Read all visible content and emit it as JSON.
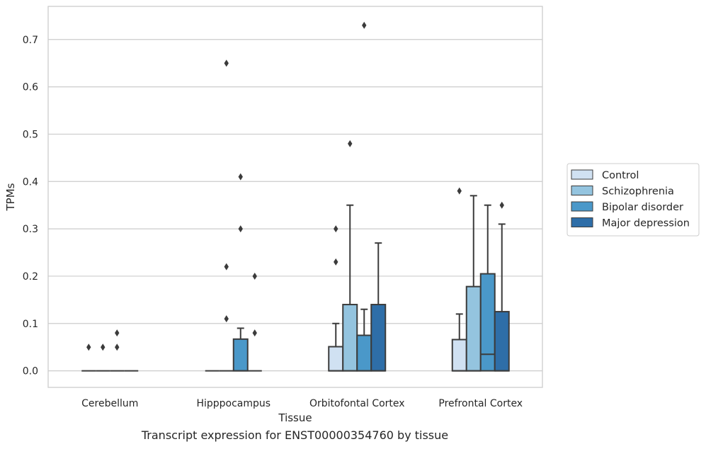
{
  "caption": "Transcript expression for ENST00000354760 by tissue",
  "chart_data": {
    "type": "box",
    "xlabel": "Tissue",
    "ylabel": "TPMs",
    "ylim": [
      -0.035,
      0.77
    ],
    "yticks": [
      0.0,
      0.1,
      0.2,
      0.3,
      0.4,
      0.5,
      0.6,
      0.7
    ],
    "ytick_labels": [
      "0.0",
      "0.1",
      "0.2",
      "0.3",
      "0.4",
      "0.5",
      "0.6",
      "0.7"
    ],
    "grid": "horizontal",
    "legend_position": "right",
    "categories": [
      "Cerebellum",
      "Hipppocampus",
      "Orbitofontal Cortex",
      "Prefrontal Cortex"
    ],
    "series": [
      {
        "name": "Control",
        "color": "#d0e1f2",
        "boxes": [
          {
            "q1": 0.0,
            "median": 0.0,
            "q3": 0.0,
            "whisker_low": 0.0,
            "whisker_high": 0.0,
            "outliers": [
              0.05
            ]
          },
          {
            "q1": 0.0,
            "median": 0.0,
            "q3": 0.0,
            "whisker_low": 0.0,
            "whisker_high": 0.0,
            "outliers": []
          },
          {
            "q1": 0.0,
            "median": 0.0,
            "q3": 0.051,
            "whisker_low": 0.0,
            "whisker_high": 0.1,
            "outliers": [
              0.23,
              0.3
            ]
          },
          {
            "q1": 0.0,
            "median": 0.0,
            "q3": 0.066,
            "whisker_low": 0.0,
            "whisker_high": 0.12,
            "outliers": [
              0.38
            ]
          }
        ]
      },
      {
        "name": "Schizophrenia",
        "color": "#94c4df",
        "boxes": [
          {
            "q1": 0.0,
            "median": 0.0,
            "q3": 0.0,
            "whisker_low": 0.0,
            "whisker_high": 0.0,
            "outliers": [
              0.05
            ]
          },
          {
            "q1": 0.0,
            "median": 0.0,
            "q3": 0.0,
            "whisker_low": 0.0,
            "whisker_high": 0.0,
            "outliers": [
              0.11,
              0.22,
              0.65
            ]
          },
          {
            "q1": 0.0,
            "median": 0.0,
            "q3": 0.14,
            "whisker_low": 0.0,
            "whisker_high": 0.35,
            "outliers": [
              0.48
            ]
          },
          {
            "q1": 0.0,
            "median": 0.0,
            "q3": 0.178,
            "whisker_low": 0.0,
            "whisker_high": 0.37,
            "outliers": []
          }
        ]
      },
      {
        "name": "Bipolar disorder",
        "color": "#4a98c9",
        "boxes": [
          {
            "q1": 0.0,
            "median": 0.0,
            "q3": 0.0,
            "whisker_low": 0.0,
            "whisker_high": 0.0,
            "outliers": [
              0.05,
              0.08
            ]
          },
          {
            "q1": 0.0,
            "median": 0.0,
            "q3": 0.067,
            "whisker_low": 0.0,
            "whisker_high": 0.09,
            "outliers": [
              0.3,
              0.41
            ]
          },
          {
            "q1": 0.0,
            "median": 0.0,
            "q3": 0.075,
            "whisker_low": 0.0,
            "whisker_high": 0.13,
            "outliers": [
              0.73
            ]
          },
          {
            "q1": 0.0,
            "median": 0.035,
            "q3": 0.205,
            "whisker_low": 0.0,
            "whisker_high": 0.35,
            "outliers": []
          }
        ]
      },
      {
        "name": "Major depression",
        "color": "#2e6ea8",
        "boxes": [
          {
            "q1": 0.0,
            "median": 0.0,
            "q3": 0.0,
            "whisker_low": 0.0,
            "whisker_high": 0.0,
            "outliers": []
          },
          {
            "q1": 0.0,
            "median": 0.0,
            "q3": 0.0,
            "whisker_low": 0.0,
            "whisker_high": 0.0,
            "outliers": [
              0.08,
              0.2
            ]
          },
          {
            "q1": 0.0,
            "median": 0.0,
            "q3": 0.14,
            "whisker_low": 0.0,
            "whisker_high": 0.27,
            "outliers": []
          },
          {
            "q1": 0.0,
            "median": 0.0,
            "q3": 0.125,
            "whisker_low": 0.0,
            "whisker_high": 0.31,
            "outliers": [
              0.35
            ]
          }
        ]
      }
    ]
  }
}
